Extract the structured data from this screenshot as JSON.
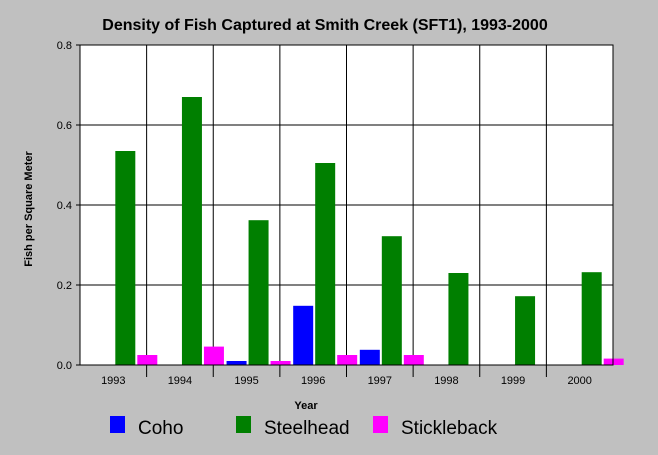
{
  "chart_data": {
    "type": "bar",
    "title": "Density of Fish Captured at Smith Creek (SFT1), 1993-2000",
    "xlabel": "Year",
    "ylabel": "Fish per Square Meter",
    "ylim": [
      0,
      0.8
    ],
    "yticks": [
      "0.0",
      "0.2",
      "0.4",
      "0.6",
      "0.8"
    ],
    "categories": [
      "1993",
      "1994",
      "1995",
      "1996",
      "1997",
      "1998",
      "1999",
      "2000"
    ],
    "series": [
      {
        "name": "Coho",
        "color": "#0000ff",
        "values": [
          0,
          0,
          0.01,
          0.148,
          0.038,
          0,
          0,
          0
        ]
      },
      {
        "name": "Steelhead",
        "color": "#007f00",
        "values": [
          0.535,
          0.67,
          0.362,
          0.505,
          0.322,
          0.23,
          0.172,
          0.232
        ]
      },
      {
        "name": "Stickleback",
        "color": "#ff00ff",
        "values": [
          0.025,
          0.046,
          0.01,
          0.025,
          0.025,
          0,
          0,
          0.016
        ]
      }
    ],
    "grid": true,
    "legend_position": "bottom"
  }
}
